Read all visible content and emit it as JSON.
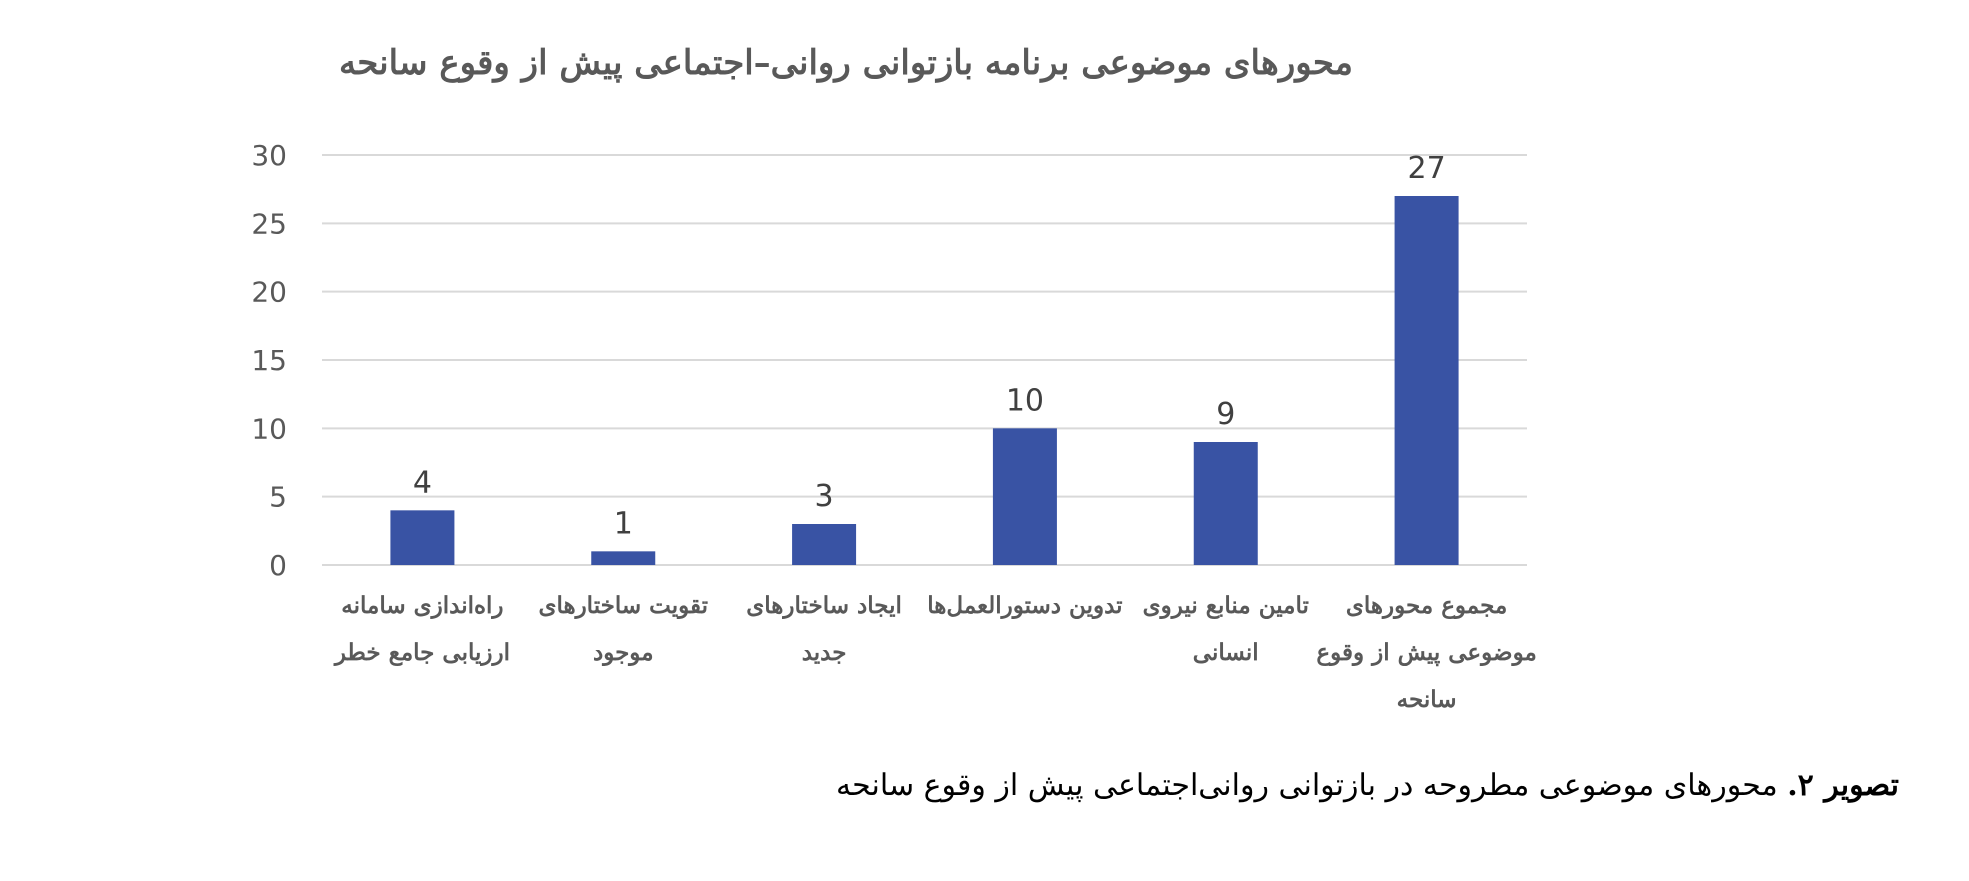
{
  "chart_data": {
    "type": "bar",
    "title": "محورهای موضوعی برنامه بازتوانی روانی–اجتماعی پیش از وقوع سانحه",
    "xlabel": "",
    "ylabel": "",
    "ylim": [
      0,
      30
    ],
    "yticks": [
      "0",
      "5",
      "10",
      "15",
      "20",
      "25",
      "30"
    ],
    "grid": true,
    "legend": "none",
    "categories": [
      [
        "مجموع محورهای",
        "موضوعی پیش از وقوع",
        "سانحه"
      ],
      [
        "تامین منابع نیروی",
        "انسانی"
      ],
      [
        "تدوین دستورالعمل‌ها"
      ],
      [
        "ایجاد ساختارهای",
        "جدید"
      ],
      [
        "تقویت ساختارهای",
        "موجود"
      ],
      [
        "راه‌اندازی سامانه",
        "ارزیابی جامع خطر"
      ]
    ],
    "values": [
      27,
      9,
      10,
      3,
      1,
      4
    ],
    "data_labels": [
      "27",
      "9",
      "10",
      "3",
      "1",
      "4"
    ],
    "bar_color": "#3953A4",
    "grid_color": "#D9D9D9"
  },
  "caption": {
    "prefix": "تصویر ۲.",
    "text": "محورهای موضوعی مطروحه در بازتوانی روانی‌اجتماعی پیش از وقوع سانحه"
  }
}
